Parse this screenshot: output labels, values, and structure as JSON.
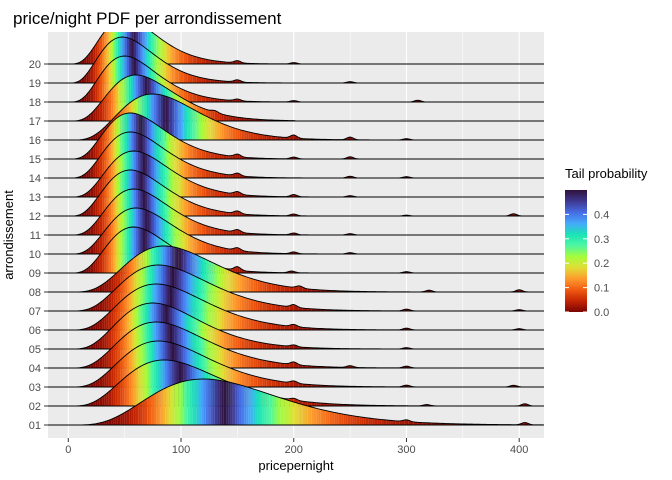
{
  "chart_data": {
    "type": "ridgeline",
    "title": "price/night PDF per arrondissement",
    "xlabel": "pricepernight",
    "ylabel": "arrondissement",
    "xlim": [
      -18,
      422
    ],
    "x_ticks": [
      0,
      100,
      200,
      300,
      400
    ],
    "x_tick_labels": [
      "0",
      "100",
      "200",
      "300",
      "400"
    ],
    "grid": true,
    "legend": {
      "title": "Tail probability",
      "position": "right",
      "ticks": [
        0.0,
        0.1,
        0.2,
        0.3,
        0.4
      ],
      "tick_labels": [
        "0.0",
        "0.1",
        "0.2",
        "0.3",
        "0.4"
      ],
      "range": [
        0,
        0.5
      ]
    },
    "colors": [
      "#7a0403",
      "#c42503",
      "#f05b12",
      "#fe9b2d",
      "#e1dd37",
      "#a4fc3c",
      "#4df6a3",
      "#1ae4b6",
      "#46a8fb",
      "#466be3",
      "#3e378f",
      "#30123b"
    ],
    "series": [
      {
        "name": "01",
        "mode": 120,
        "spread": 34,
        "skew": 1.6,
        "tail": 420,
        "bumps": [
          [
            300,
            0.04
          ],
          [
            405,
            0.05
          ]
        ]
      },
      {
        "name": "02",
        "mode": 85,
        "spread": 32,
        "skew": 2.4,
        "tail": 420,
        "bumps": [
          [
            200,
            0.04
          ],
          [
            318,
            0.03
          ],
          [
            405,
            0.05
          ]
        ]
      },
      {
        "name": "03",
        "mode": 80,
        "spread": 30,
        "skew": 2.5,
        "tail": 420,
        "bumps": [
          [
            200,
            0.05
          ],
          [
            300,
            0.04
          ],
          [
            395,
            0.04
          ]
        ]
      },
      {
        "name": "04",
        "mode": 78,
        "spread": 30,
        "skew": 2.6,
        "tail": 420,
        "bumps": [
          [
            200,
            0.06
          ],
          [
            250,
            0.04
          ],
          [
            300,
            0.04
          ]
        ]
      },
      {
        "name": "05",
        "mode": 75,
        "spread": 28,
        "skew": 2.6,
        "tail": 420,
        "bumps": [
          [
            200,
            0.04
          ],
          [
            300,
            0.03
          ]
        ]
      },
      {
        "name": "06",
        "mode": 78,
        "spread": 30,
        "skew": 2.6,
        "tail": 420,
        "bumps": [
          [
            200,
            0.05
          ],
          [
            300,
            0.04
          ],
          [
            400,
            0.03
          ]
        ]
      },
      {
        "name": "07",
        "mode": 80,
        "spread": 30,
        "skew": 2.6,
        "tail": 420,
        "bumps": [
          [
            200,
            0.06
          ],
          [
            300,
            0.04
          ],
          [
            400,
            0.03
          ]
        ]
      },
      {
        "name": "08",
        "mode": 85,
        "spread": 30,
        "skew": 2.7,
        "tail": 420,
        "bumps": [
          [
            205,
            0.05
          ],
          [
            320,
            0.04
          ],
          [
            400,
            0.05
          ]
        ]
      },
      {
        "name": "09",
        "mode": 58,
        "spread": 20,
        "skew": 2.3,
        "tail": 310,
        "bumps": [
          [
            150,
            0.08
          ],
          [
            198,
            0.04
          ],
          [
            300,
            0.03
          ]
        ]
      },
      {
        "name": "10",
        "mode": 60,
        "spread": 21,
        "skew": 2.3,
        "tail": 350,
        "bumps": [
          [
            150,
            0.06
          ],
          [
            200,
            0.04
          ],
          [
            250,
            0.03
          ]
        ]
      },
      {
        "name": "11",
        "mode": 58,
        "spread": 20,
        "skew": 2.3,
        "tail": 350,
        "bumps": [
          [
            150,
            0.06
          ],
          [
            200,
            0.04
          ],
          [
            250,
            0.03
          ]
        ]
      },
      {
        "name": "12",
        "mode": 55,
        "spread": 20,
        "skew": 2.2,
        "tail": 410,
        "bumps": [
          [
            150,
            0.06
          ],
          [
            200,
            0.04
          ],
          [
            300,
            0.02
          ],
          [
            395,
            0.05
          ]
        ]
      },
      {
        "name": "13",
        "mode": 58,
        "spread": 20,
        "skew": 2.3,
        "tail": 340,
        "bumps": [
          [
            150,
            0.06
          ],
          [
            200,
            0.05
          ],
          [
            250,
            0.03
          ]
        ]
      },
      {
        "name": "14",
        "mode": 55,
        "spread": 20,
        "skew": 2.3,
        "tail": 340,
        "bumps": [
          [
            150,
            0.06
          ],
          [
            250,
            0.04
          ],
          [
            300,
            0.03
          ]
        ]
      },
      {
        "name": "15",
        "mode": 55,
        "spread": 20,
        "skew": 2.3,
        "tail": 300,
        "bumps": [
          [
            150,
            0.06
          ],
          [
            200,
            0.04
          ],
          [
            250,
            0.05
          ]
        ]
      },
      {
        "name": "16",
        "mode": 75,
        "spread": 26,
        "skew": 2.6,
        "tail": 380,
        "bumps": [
          [
            200,
            0.07
          ],
          [
            250,
            0.06
          ],
          [
            300,
            0.03
          ]
        ]
      },
      {
        "name": "17",
        "mode": 60,
        "spread": 20,
        "skew": 2.0,
        "tail": 200,
        "bumps": [
          [
            130,
            0.04
          ]
        ]
      },
      {
        "name": "18",
        "mode": 50,
        "spread": 18,
        "skew": 2.1,
        "tail": 320,
        "bumps": [
          [
            150,
            0.04
          ],
          [
            200,
            0.03
          ],
          [
            310,
            0.04
          ]
        ]
      },
      {
        "name": "19",
        "mode": 48,
        "spread": 18,
        "skew": 2.1,
        "tail": 260,
        "bumps": [
          [
            150,
            0.05
          ],
          [
            250,
            0.03
          ]
        ]
      },
      {
        "name": "20",
        "mode": 50,
        "spread": 18,
        "skew": 2.2,
        "tail": 300,
        "bumps": [
          [
            150,
            0.05
          ],
          [
            200,
            0.03
          ]
        ]
      }
    ]
  }
}
